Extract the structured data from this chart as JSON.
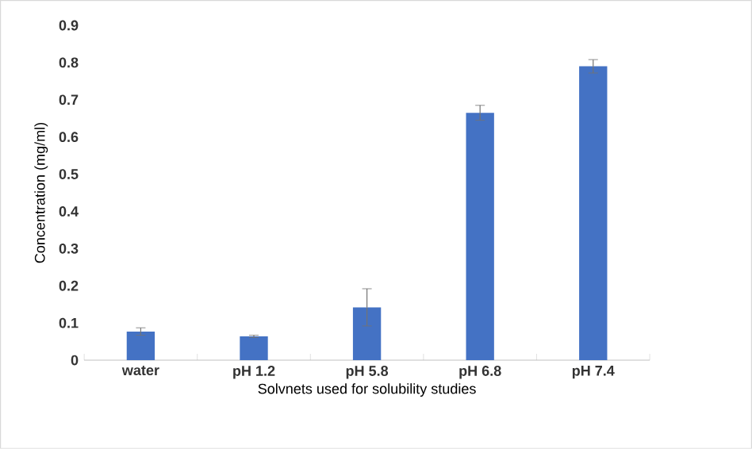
{
  "chart_data": {
    "type": "bar",
    "xlabel": "Solvnets used for solubility  studies",
    "ylabel": "Concentration (mg/ml)",
    "categories": [
      "water",
      "pH 1.2",
      "pH 5.8",
      "pH 6.8",
      "pH 7.4"
    ],
    "values": [
      0.077,
      0.064,
      0.142,
      0.665,
      0.79
    ],
    "errors": [
      0.01,
      0.003,
      0.05,
      0.02,
      0.018
    ],
    "color": "#4472c4",
    "ylim": [
      0,
      0.9
    ],
    "yticks": [
      0,
      0.1,
      0.2,
      0.3,
      0.4,
      0.5,
      0.6,
      0.7,
      0.8,
      0.9
    ]
  }
}
